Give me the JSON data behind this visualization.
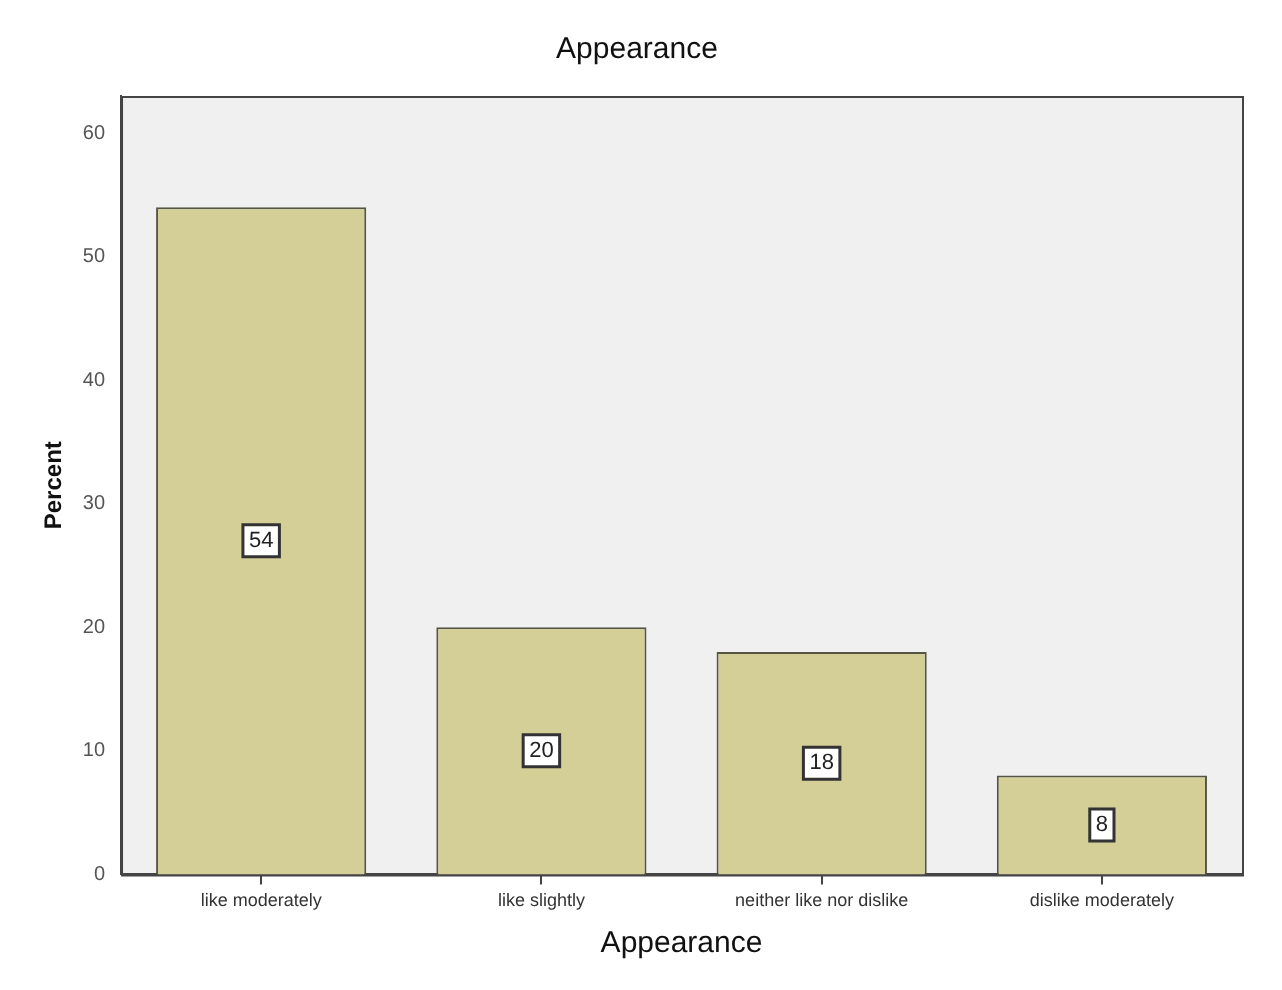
{
  "chart_data": {
    "type": "bar",
    "title": "Appearance",
    "xlabel": "Appearance",
    "ylabel": "Percent",
    "categories": [
      "like moderately",
      "like slightly",
      "neither like nor dislike",
      "dislike moderately"
    ],
    "values": [
      54,
      20,
      18,
      8
    ],
    "color": "#d3cf96",
    "ylim": [
      0,
      63
    ],
    "yticks": [
      0,
      10,
      20,
      30,
      40,
      50,
      60
    ],
    "grid": false,
    "legend": false,
    "data_labels": true
  }
}
